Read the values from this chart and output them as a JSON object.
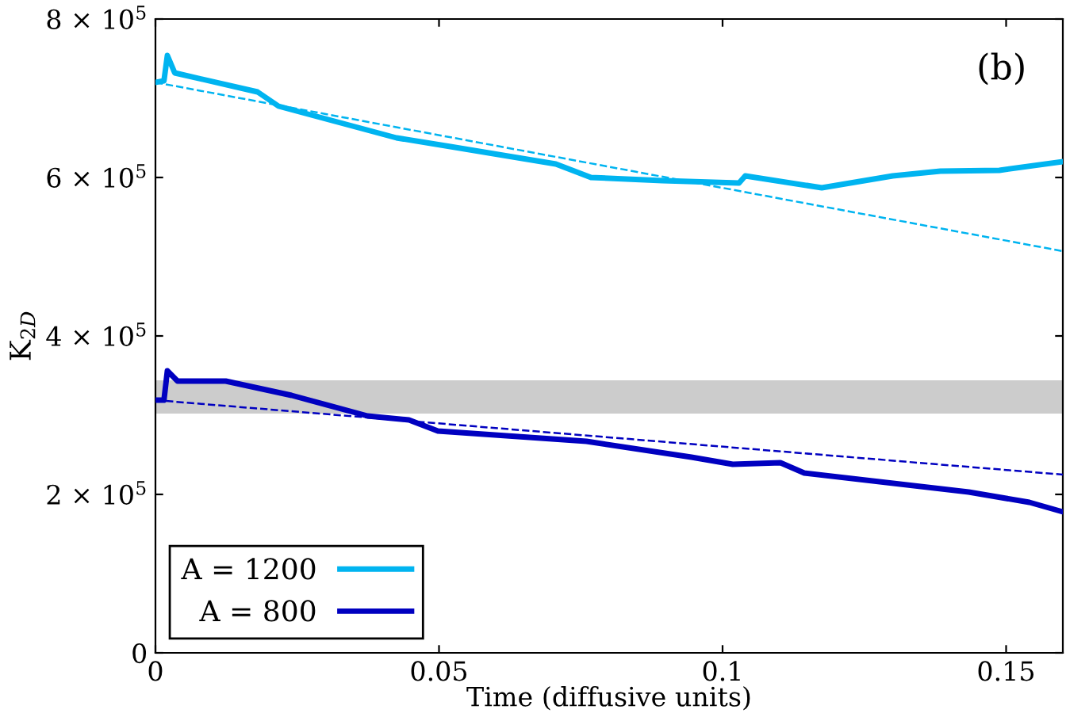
{
  "chart_data": {
    "type": "line",
    "xlabel": "Time (diffusive units)",
    "ylabel": "K$_{2D}$",
    "xlim": [
      0,
      0.16
    ],
    "xticks": [
      0,
      0.05,
      0.1,
      0.15
    ],
    "ylim": [
      0,
      800000
    ],
    "yticks": [
      {
        "value": 0,
        "label": "0"
      },
      {
        "value": 200000,
        "label": "2 × 10$^{5}$"
      },
      {
        "value": 400000,
        "label": "4 × 10$^{5}$"
      },
      {
        "value": 600000,
        "label": "6 × 10$^{5}$"
      },
      {
        "value": 800000,
        "label": "8 × 10$^{5}$"
      }
    ],
    "series": [
      {
        "name": "A = 1200",
        "color": "#00b4f0",
        "line_style": "solid",
        "x": [
          0,
          0.0015,
          0.0021,
          0.0034,
          0.018,
          0.0217,
          0.0425,
          0.052,
          0.0706,
          0.0768,
          0.0894,
          0.1029,
          0.104,
          0.1175,
          0.13,
          0.1384,
          0.1488,
          0.16
        ],
        "values": [
          720000,
          722000,
          754000,
          732000,
          708000,
          690000,
          650000,
          639000,
          617000,
          600000,
          596000,
          593000,
          602000,
          587000,
          602000,
          608000,
          609000,
          620000
        ]
      },
      {
        "name": "A = 800",
        "color": "#0000c0",
        "line_style": "solid",
        "x": [
          0,
          0.0015,
          0.0021,
          0.0039,
          0.0124,
          0.024,
          0.0374,
          0.0447,
          0.0498,
          0.076,
          0.0945,
          0.1018,
          0.1102,
          0.1144,
          0.1434,
          0.1541,
          0.16
        ],
        "values": [
          319000,
          319000,
          356000,
          343000,
          343000,
          325000,
          299000,
          294000,
          280000,
          267000,
          247000,
          238000,
          240000,
          227000,
          203000,
          190000,
          178000
        ]
      },
      {
        "color": "#00b4f0",
        "line_style": "dashed",
        "x": [
          0,
          0.16
        ],
        "values": [
          720000,
          507000
        ]
      },
      {
        "color": "#0000c0",
        "line_style": "dashed",
        "x": [
          0,
          0.16
        ],
        "values": [
          319000,
          225000
        ]
      }
    ],
    "bands": [
      {
        "axis": "y",
        "from": 302000,
        "to": 344000,
        "color": "#cccccc"
      }
    ],
    "annotations": [
      "(b)"
    ],
    "legend": "bottom left",
    "grid": false
  }
}
